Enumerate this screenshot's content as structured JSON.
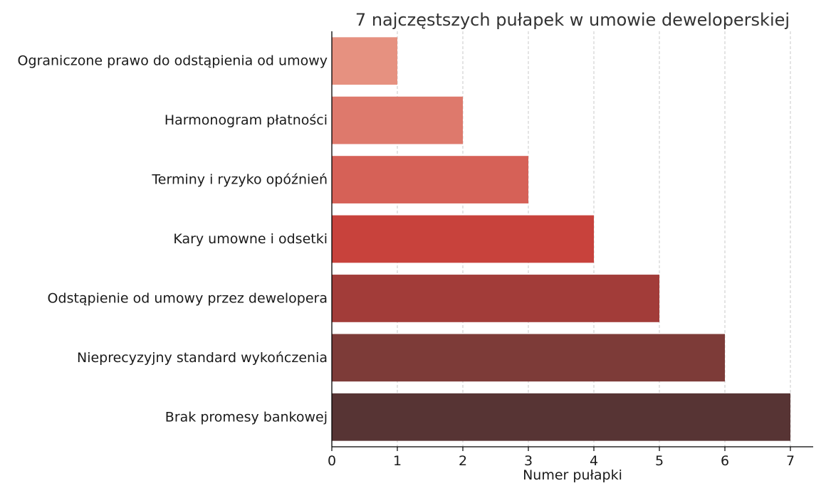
{
  "chart_data": {
    "type": "bar",
    "orientation": "horizontal",
    "title": "7 najczęstszych pułapek w umowie deweloperskiej",
    "xlabel": "Numer pułapki",
    "ylabel": "",
    "xlim": [
      0,
      7.35
    ],
    "x_ticks": [
      "0",
      "1",
      "2",
      "3",
      "4",
      "5",
      "6",
      "7"
    ],
    "grid": "vertical-dashed",
    "categories": [
      "Ograniczone prawo do odstąpienia od umowy",
      "Harmonogram płatności",
      "Terminy i ryzyko opóźnień",
      "Kary umowne i odsetki",
      "Odstąpienie od umowy przez dewelopera",
      "Nieprecyzyjny standard wykończenia",
      "Brak promesy bankowej"
    ],
    "values": [
      1,
      2,
      3,
      4,
      5,
      6,
      7
    ],
    "colors": [
      "#e69180",
      "#de796c",
      "#d66157",
      "#c8423c",
      "#a23c39",
      "#7d3b38",
      "#573434"
    ]
  }
}
